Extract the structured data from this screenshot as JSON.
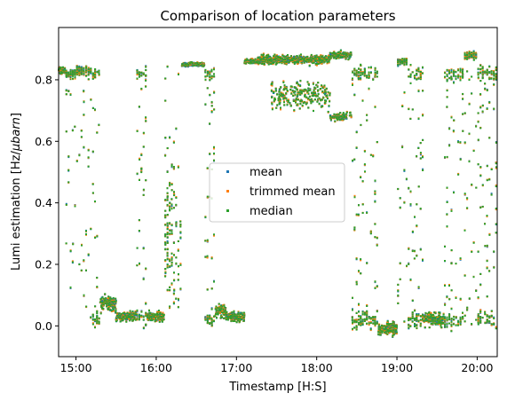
{
  "chart_data": {
    "type": "scatter",
    "title": "Comparison of location parameters",
    "xlabel": "Timestamp [H:S]",
    "ylabel_prefix": "Lumi estimation [Hz/",
    "ylabel_unit": "μbarn",
    "ylabel_suffix": "]",
    "x_unit": "minutes since 00:00",
    "xlim": [
      887,
      1215
    ],
    "ylim": [
      -0.1,
      0.97
    ],
    "x_ticks": [
      {
        "value": 900,
        "label": "15:00"
      },
      {
        "value": 960,
        "label": "16:00"
      },
      {
        "value": 1020,
        "label": "17:00"
      },
      {
        "value": 1080,
        "label": "18:00"
      },
      {
        "value": 1140,
        "label": "19:00"
      },
      {
        "value": 1200,
        "label": "20:00"
      }
    ],
    "y_ticks": [
      {
        "value": 0.0,
        "label": "0.0"
      },
      {
        "value": 0.2,
        "label": "0.2"
      },
      {
        "value": 0.4,
        "label": "0.4"
      },
      {
        "value": 0.6,
        "label": "0.6"
      },
      {
        "value": 0.8,
        "label": "0.8"
      }
    ],
    "legend_position": "center",
    "series": [
      {
        "name": "mean",
        "color": "#1f77b4"
      },
      {
        "name": "trimmed mean",
        "color": "#ff7f0e"
      },
      {
        "name": "median",
        "color": "#2ca02c"
      }
    ],
    "segments": [
      {
        "start": 887,
        "end": 892,
        "mode": "high",
        "level": 0.83,
        "spread": 0.015
      },
      {
        "start": 892,
        "end": 900,
        "mode": "vert",
        "level": 0.82,
        "spread": 0.02
      },
      {
        "start": 900,
        "end": 905,
        "mode": "vert",
        "level": 0.83,
        "spread": 0.02
      },
      {
        "start": 905,
        "end": 912,
        "mode": "vert",
        "level": 0.83,
        "spread": 0.02
      },
      {
        "start": 912,
        "end": 918,
        "mode": "mixed",
        "level": 0.5,
        "spread": 0.3
      },
      {
        "start": 918,
        "end": 930,
        "mode": "low",
        "level": 0.07,
        "spread": 0.04
      },
      {
        "start": 930,
        "end": 945,
        "mode": "low",
        "level": 0.03,
        "spread": 0.02
      },
      {
        "start": 945,
        "end": 953,
        "mode": "mixed",
        "level": 0.2,
        "spread": 0.3
      },
      {
        "start": 953,
        "end": 966,
        "mode": "low",
        "level": 0.03,
        "spread": 0.02
      },
      {
        "start": 966,
        "end": 979,
        "mode": "vert",
        "level": 0.3,
        "spread": 0.3
      },
      {
        "start": 979,
        "end": 996,
        "mode": "high",
        "level": 0.85,
        "spread": 0.008
      },
      {
        "start": 996,
        "end": 1004,
        "mode": "mixed",
        "level": 0.3,
        "spread": 0.3
      },
      {
        "start": 1004,
        "end": 1012,
        "mode": "low",
        "level": 0.05,
        "spread": 0.03
      },
      {
        "start": 1012,
        "end": 1026,
        "mode": "low",
        "level": 0.03,
        "spread": 0.02
      },
      {
        "start": 1026,
        "end": 1036,
        "mode": "high",
        "level": 0.86,
        "spread": 0.01
      },
      {
        "start": 1036,
        "end": 1090,
        "mode": "band",
        "level": 0.865,
        "spread": 0.02
      },
      {
        "start": 1046,
        "end": 1090,
        "mode": "sub",
        "level": 0.75,
        "spread": 0.06
      },
      {
        "start": 1090,
        "end": 1106,
        "mode": "band",
        "level": 0.88,
        "spread": 0.015
      },
      {
        "start": 1090,
        "end": 1106,
        "mode": "sub",
        "level": 0.68,
        "spread": 0.02
      },
      {
        "start": 1106,
        "end": 1126,
        "mode": "mixed",
        "level": 0.3,
        "spread": 0.35
      },
      {
        "start": 1126,
        "end": 1140,
        "mode": "low",
        "level": -0.01,
        "spread": 0.03
      },
      {
        "start": 1140,
        "end": 1148,
        "mode": "vert",
        "level": 0.86,
        "spread": 0.015
      },
      {
        "start": 1148,
        "end": 1160,
        "mode": "mixed",
        "level": 0.3,
        "spread": 0.35
      },
      {
        "start": 1160,
        "end": 1175,
        "mode": "low",
        "level": 0.02,
        "spread": 0.03
      },
      {
        "start": 1175,
        "end": 1190,
        "mode": "mixed",
        "level": 0.4,
        "spread": 0.4
      },
      {
        "start": 1190,
        "end": 1200,
        "mode": "vert",
        "level": 0.88,
        "spread": 0.02
      },
      {
        "start": 1200,
        "end": 1215,
        "mode": "mixed",
        "level": 0.4,
        "spread": 0.4
      }
    ]
  }
}
